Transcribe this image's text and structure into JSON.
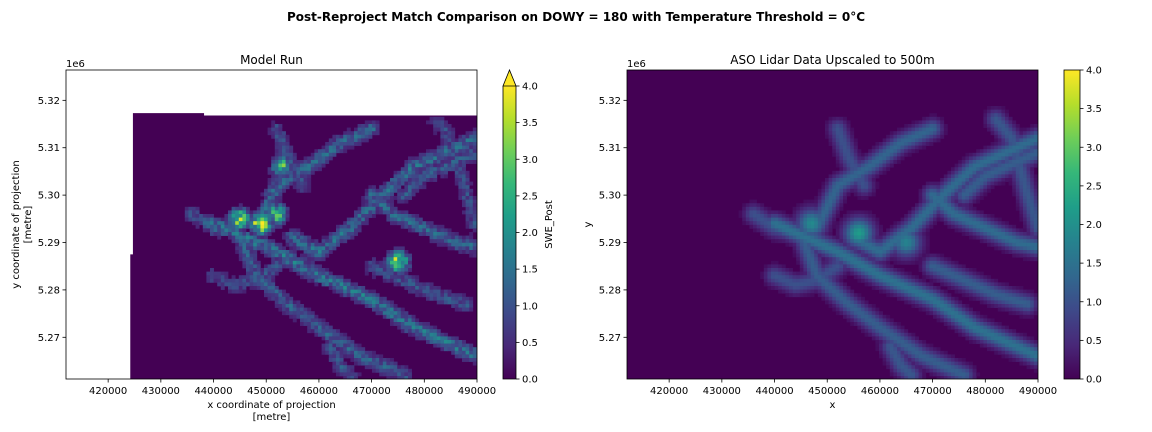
{
  "figure": {
    "suptitle": "Post-Reproject Match Comparison on DOWY = 180 with Temperature Threshold = 0°C"
  },
  "colors": {
    "viridis": [
      "#440154",
      "#482878",
      "#3e4989",
      "#31688e",
      "#26828e",
      "#1f9e89",
      "#35b779",
      "#6ece58",
      "#b5de2b",
      "#fde725"
    ],
    "background": "#ffffff",
    "axis": "#000000"
  },
  "chart_data": [
    {
      "type": "heatmap",
      "title": "Model Run",
      "xlabel": [
        "x coordinate of projection",
        "[metre]"
      ],
      "ylabel": [
        "y coordinate of projection",
        "[metre]"
      ],
      "xlim": [
        412000,
        490000
      ],
      "ylim": [
        5.2612,
        5.3264
      ],
      "y_offset_label": "1e6",
      "x_ticks": [
        420000,
        430000,
        440000,
        450000,
        460000,
        470000,
        480000,
        490000
      ],
      "x_tick_labels": [
        "420000",
        "430000",
        "440000",
        "450000",
        "460000",
        "470000",
        "480000",
        "490000"
      ],
      "y_ticks": [
        5.27,
        5.28,
        5.29,
        5.3,
        5.31,
        5.32
      ],
      "y_tick_labels": [
        "5.27",
        "5.28",
        "5.29",
        "5.30",
        "5.31",
        "5.32"
      ],
      "data_extent": {
        "x_min": 424700,
        "x_max": 490000,
        "y_min": 5.2612,
        "y_max": 5.3173,
        "notch_x_max": 438200,
        "notch_y_max": 5.3168,
        "left_strip_x_min": 424200,
        "left_strip_y_max": 5.2875
      },
      "colorbar": {
        "label": "SWE_Post",
        "vmin": 0,
        "vmax": 4.0,
        "extend": "max",
        "ticks": [
          0.0,
          0.5,
          1.0,
          1.5,
          2.0,
          2.5,
          3.0,
          3.5,
          4.0
        ],
        "tick_labels": [
          "0.0",
          "0.5",
          "1.0",
          "1.5",
          "2.0",
          "2.5",
          "3.0",
          "3.5",
          "4.0"
        ]
      },
      "field": {
        "ridges": [
          {
            "x": [
              440000,
              452000,
              460000,
              470000,
              478000,
              486000,
              490000
            ],
            "y": [
              5.294,
              5.288,
              5.283,
              5.278,
              5.272,
              5.268,
              5.266
            ],
            "value": 1.4
          },
          {
            "x": [
              448000,
              452000,
              458000,
              464000,
              470000
            ],
            "y": [
              5.293,
              5.302,
              5.306,
              5.311,
              5.314
            ],
            "value": 1.2
          },
          {
            "x": [
              455000,
              460000,
              466000,
              472000,
              478000,
              486000,
              490000
            ],
            "y": [
              5.291,
              5.288,
              5.293,
              5.3,
              5.306,
              5.31,
              5.312
            ],
            "value": 1.3
          },
          {
            "x": [
              445000,
              448000,
              454000,
              460000,
              468000,
              476000
            ],
            "y": [
              5.292,
              5.283,
              5.277,
              5.272,
              5.266,
              5.262
            ],
            "value": 1.1
          },
          {
            "x": [
              470000,
              474000,
              480000,
              486000,
              490000
            ],
            "y": [
              5.3,
              5.296,
              5.293,
              5.29,
              5.289
            ],
            "value": 1.2
          },
          {
            "x": [
              470000,
              476000,
              482000,
              488000
            ],
            "y": [
              5.285,
              5.282,
              5.279,
              5.277
            ],
            "value": 1.0
          },
          {
            "x": [
              436000,
              440000,
              444000
            ],
            "y": [
              5.296,
              5.293,
              5.292
            ],
            "value": 1.0
          },
          {
            "x": [
              440000,
              444000,
              448000,
              452000
            ],
            "y": [
              5.283,
              5.281,
              5.282,
              5.285
            ],
            "value": 0.9
          },
          {
            "x": [
              476000,
              480000,
              486000,
              490000
            ],
            "y": [
              5.3,
              5.304,
              5.307,
              5.309
            ],
            "value": 1.0
          },
          {
            "x": [
              482000,
              485000,
              488000,
              490000
            ],
            "y": [
              5.316,
              5.312,
              5.3,
              5.293
            ],
            "value": 0.9
          },
          {
            "x": [
              462000,
              464000,
              466000
            ],
            "y": [
              5.268,
              5.264,
              5.262
            ],
            "value": 1.0
          },
          {
            "x": [
              452000,
              454000,
              457000
            ],
            "y": [
              5.314,
              5.308,
              5.302
            ],
            "value": 0.9
          }
        ],
        "hotspots": [
          {
            "x": 449000,
            "y": 5.294,
            "value": 3.8
          },
          {
            "x": 445000,
            "y": 5.295,
            "value": 3.2
          },
          {
            "x": 452000,
            "y": 5.296,
            "value": 2.8
          },
          {
            "x": 475000,
            "y": 5.286,
            "value": 3.6
          },
          {
            "x": 453000,
            "y": 5.306,
            "value": 2.5
          }
        ]
      }
    },
    {
      "type": "heatmap",
      "title": "ASO Lidar Data Upscaled to 500m",
      "xlabel": [
        "x"
      ],
      "ylabel": [
        "y"
      ],
      "xlim": [
        412000,
        490000
      ],
      "ylim": [
        5.2612,
        5.3264
      ],
      "y_offset_label": "1e6",
      "x_ticks": [
        420000,
        430000,
        440000,
        450000,
        460000,
        470000,
        480000,
        490000
      ],
      "x_tick_labels": [
        "420000",
        "430000",
        "440000",
        "450000",
        "460000",
        "470000",
        "480000",
        "490000"
      ],
      "y_ticks": [
        5.27,
        5.28,
        5.29,
        5.3,
        5.31,
        5.32
      ],
      "y_tick_labels": [
        "5.27",
        "5.28",
        "5.29",
        "5.30",
        "5.31",
        "5.32"
      ],
      "colorbar": {
        "label": "",
        "vmin": 0,
        "vmax": 4.0,
        "extend": "neither",
        "ticks": [
          0.0,
          0.5,
          1.0,
          1.5,
          2.0,
          2.5,
          3.0,
          3.5,
          4.0
        ],
        "tick_labels": [
          "0.0",
          "0.5",
          "1.0",
          "1.5",
          "2.0",
          "2.5",
          "3.0",
          "3.5",
          "4.0"
        ]
      },
      "field": {
        "ridges": [
          {
            "x": [
              440000,
              452000,
              460000,
              470000,
              478000,
              486000,
              490000
            ],
            "y": [
              5.294,
              5.288,
              5.283,
              5.278,
              5.272,
              5.268,
              5.266
            ],
            "value": 1.5
          },
          {
            "x": [
              448000,
              452000,
              458000,
              464000,
              470000
            ],
            "y": [
              5.293,
              5.302,
              5.306,
              5.311,
              5.314
            ],
            "value": 1.3
          },
          {
            "x": [
              455000,
              460000,
              466000,
              472000,
              478000,
              486000,
              490000
            ],
            "y": [
              5.291,
              5.288,
              5.293,
              5.3,
              5.306,
              5.31,
              5.312
            ],
            "value": 1.4
          },
          {
            "x": [
              445000,
              448000,
              454000,
              460000,
              468000,
              476000
            ],
            "y": [
              5.292,
              5.283,
              5.277,
              5.272,
              5.266,
              5.262
            ],
            "value": 1.2
          },
          {
            "x": [
              470000,
              474000,
              480000,
              486000,
              490000
            ],
            "y": [
              5.3,
              5.296,
              5.293,
              5.29,
              5.289
            ],
            "value": 1.4
          },
          {
            "x": [
              470000,
              476000,
              482000,
              488000
            ],
            "y": [
              5.285,
              5.282,
              5.279,
              5.277
            ],
            "value": 1.2
          },
          {
            "x": [
              436000,
              440000,
              444000
            ],
            "y": [
              5.296,
              5.293,
              5.292
            ],
            "value": 1.0
          },
          {
            "x": [
              440000,
              444000,
              448000,
              452000
            ],
            "y": [
              5.283,
              5.281,
              5.282,
              5.285
            ],
            "value": 1.0
          },
          {
            "x": [
              476000,
              480000,
              486000,
              490000
            ],
            "y": [
              5.3,
              5.304,
              5.307,
              5.309
            ],
            "value": 1.2
          },
          {
            "x": [
              482000,
              485000,
              488000,
              490000
            ],
            "y": [
              5.316,
              5.312,
              5.3,
              5.293
            ],
            "value": 1.1
          },
          {
            "x": [
              462000,
              464000,
              466000
            ],
            "y": [
              5.268,
              5.264,
              5.262
            ],
            "value": 1.1
          },
          {
            "x": [
              452000,
              454000,
              457000
            ],
            "y": [
              5.314,
              5.308,
              5.302
            ],
            "value": 1.0
          }
        ],
        "hotspots": [
          {
            "x": 456000,
            "y": 5.292,
            "value": 2.2
          },
          {
            "x": 447000,
            "y": 5.294,
            "value": 1.9
          },
          {
            "x": 465000,
            "y": 5.29,
            "value": 1.8
          }
        ]
      }
    }
  ]
}
